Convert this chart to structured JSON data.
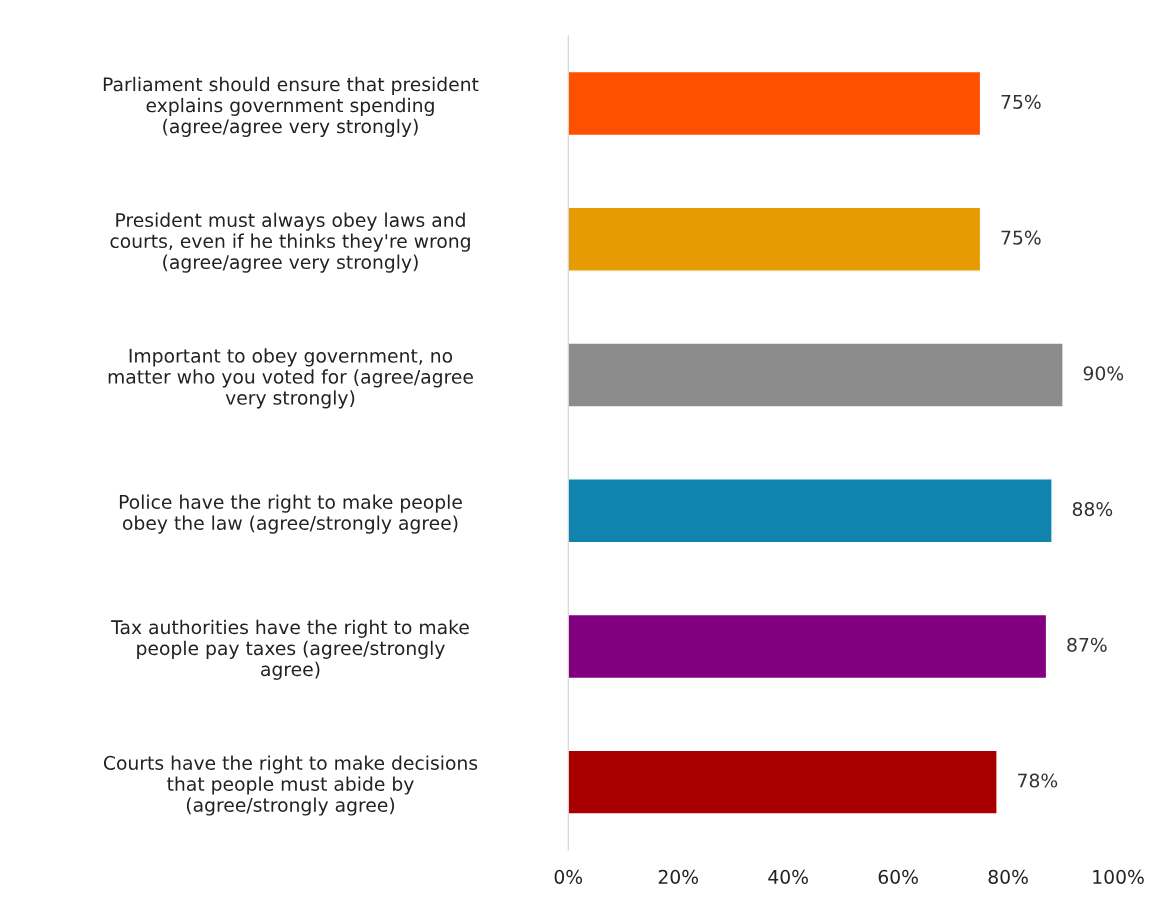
{
  "chart_data": {
    "type": "bar",
    "orientation": "horizontal",
    "categories": [
      "Parliament should ensure that president\nexplains government spending\n(agree/agree very strongly)",
      "President must always obey laws and\ncourts, even if he thinks they're wrong\n(agree/agree very strongly)",
      "Important to obey government, no\nmatter who you voted for (agree/agree\nvery strongly)",
      "Police have the right to make people\nobey the law (agree/strongly agree)",
      "Tax authorities have the right to make\npeople pay taxes (agree/strongly\nagree)",
      "Courts have the right to make decisions\nthat people must abide by\n(agree/strongly agree)"
    ],
    "values": [
      75,
      75,
      90,
      88,
      87,
      78
    ],
    "colors": [
      "#ff5000",
      "#e69c00",
      "#8c8c8c",
      "#1184ad",
      "#800080",
      "#a80000"
    ],
    "value_labels": [
      "75%",
      "75%",
      "90%",
      "88%",
      "87%",
      "78%"
    ],
    "xlim": [
      0,
      100
    ],
    "xticks": [
      {
        "value": 0,
        "label": "0%"
      },
      {
        "value": 20,
        "label": "20%"
      },
      {
        "value": 40,
        "label": "40%"
      },
      {
        "value": 60,
        "label": "60%"
      },
      {
        "value": 80,
        "label": "80%"
      },
      {
        "value": 100,
        "label": "100%"
      }
    ],
    "grid": false,
    "legend": false
  }
}
